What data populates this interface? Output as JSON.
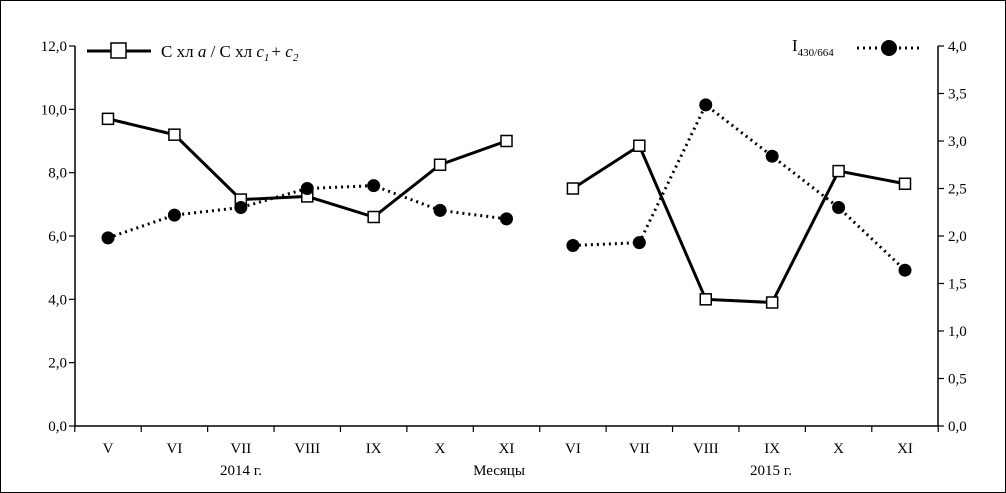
{
  "chart_data": {
    "type": "line",
    "x_categories": [
      "V",
      "VI",
      "VII",
      "VIII",
      "IX",
      "X",
      "XI",
      "VI",
      "VII",
      "VIII",
      "IX",
      "X",
      "XI"
    ],
    "group_labels": [
      "2014 г.",
      "2015 г."
    ],
    "xlabel": "Месяцы",
    "y_left": {
      "ylim": [
        0,
        12
      ],
      "ticks": [
        "0,0",
        "2,0",
        "4,0",
        "6,0",
        "8,0",
        "10,0",
        "12,0"
      ]
    },
    "y_right": {
      "ylim": [
        0,
        4
      ],
      "ticks": [
        "0,0",
        "0,5",
        "1,0",
        "1,5",
        "2,0",
        "2,5",
        "3,0",
        "3,5",
        "4,0"
      ]
    },
    "series": [
      {
        "name": "С хл a / С хл c1 + c2",
        "axis": "left",
        "style": "solid",
        "marker": "open-square",
        "color": "#000000",
        "segments": [
          {
            "indices": [
              0,
              1,
              2,
              3,
              4,
              5,
              6
            ],
            "values": [
              9.7,
              9.2,
              7.15,
              7.25,
              6.6,
              8.25,
              9.0
            ]
          },
          {
            "indices": [
              7,
              8,
              9,
              10,
              11,
              12
            ],
            "values": [
              7.5,
              8.85,
              4.0,
              3.9,
              8.05,
              7.65
            ]
          }
        ]
      },
      {
        "name": "I430/664",
        "axis": "right",
        "style": "dotted",
        "marker": "filled-circle",
        "color": "#000000",
        "segments": [
          {
            "indices": [
              0,
              1,
              2,
              3,
              4,
              5,
              6
            ],
            "values": [
              1.98,
              2.22,
              2.3,
              2.5,
              2.53,
              2.27,
              2.18
            ]
          },
          {
            "indices": [
              7,
              8,
              9,
              10,
              11,
              12
            ],
            "values": [
              1.9,
              1.93,
              3.38,
              2.84,
              2.3,
              1.64
            ]
          }
        ]
      }
    ],
    "legend": {
      "left_entry": {
        "text_main": "С хл",
        "text_a": "a",
        "text_mid": " / С хл ",
        "text_c": "c",
        "sub1": "1",
        "plus": "+ ",
        "c2": "c",
        "sub2": "2"
      },
      "right_entry": {
        "text_main": "I",
        "sub": "430/664"
      }
    },
    "grid": false
  }
}
